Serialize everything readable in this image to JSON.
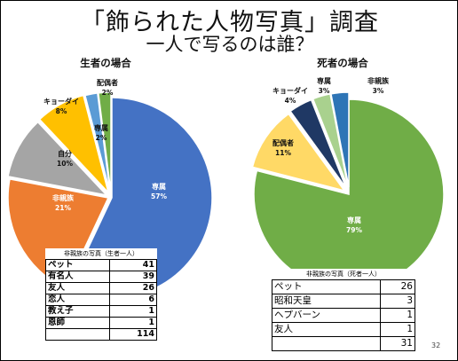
{
  "title": "「飾られた人物写真」調査",
  "subtitle": "一人で写るのは誰？",
  "page_number": "32",
  "chart_data": [
    {
      "type": "pie",
      "title": "生者の場合",
      "slices": [
        {
          "label": "専属",
          "value": 57,
          "display": "57%",
          "color": "#4472C4"
        },
        {
          "label": "非親族",
          "value": 21,
          "display": "21%",
          "color": "#ED7D31"
        },
        {
          "label": "自分",
          "value": 10,
          "display": "10%",
          "color": "#A5A5A5"
        },
        {
          "label": "キョーダイ",
          "value": 8,
          "display": "8%",
          "color": "#FFC000"
        },
        {
          "label": "専属",
          "value": 2,
          "display": "2%",
          "color": "#5B9BD5"
        },
        {
          "label": "配偶者",
          "value": 2,
          "display": "2%",
          "color": "#70AD47"
        }
      ]
    },
    {
      "type": "pie",
      "title": "死者の場合",
      "slices": [
        {
          "label": "専属",
          "value": 79,
          "display": "79%",
          "color": "#70AD47"
        },
        {
          "label": "配偶者",
          "value": 11,
          "display": "11%",
          "color": "#FFD966"
        },
        {
          "label": "キョーダイ",
          "value": 4,
          "display": "4%",
          "color": "#1F3864"
        },
        {
          "label": "専属",
          "value": 3,
          "display": "3%",
          "color": "#A9D18E"
        },
        {
          "label": "非親族",
          "value": 3,
          "display": "3%",
          "color": "#2E75B6"
        }
      ]
    },
    {
      "type": "table",
      "title": "非親族の写真（生者一人）",
      "rows": [
        [
          "ペット",
          "41"
        ],
        [
          "有名人",
          "39"
        ],
        [
          "友人",
          "26"
        ],
        [
          "恋人",
          "6"
        ],
        [
          "教え子",
          "1"
        ],
        [
          "恩師",
          "1"
        ],
        [
          "",
          "114"
        ]
      ]
    },
    {
      "type": "table",
      "title": "非親族の写真（死者一人）",
      "rows": [
        [
          "ペット",
          "26"
        ],
        [
          "昭和天皇",
          "3"
        ],
        [
          "ヘプバーン",
          "1"
        ],
        [
          "友人",
          "1"
        ],
        [
          "",
          "31"
        ]
      ]
    }
  ]
}
